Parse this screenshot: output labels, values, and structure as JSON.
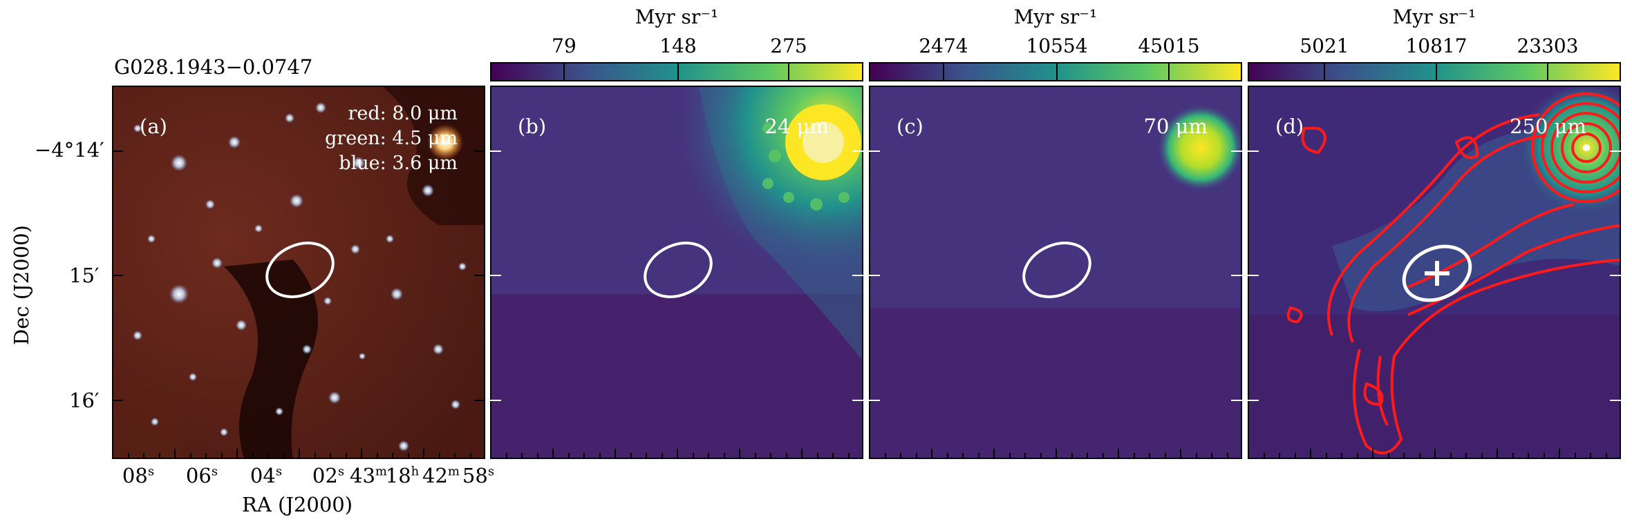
{
  "source_name": "G028.1943−0.0747",
  "axes": {
    "xlabel": "RA (J2000)",
    "ylabel": "Dec (J2000)",
    "yticks": [
      "−4°14′",
      "15′",
      "16′"
    ],
    "xticks": [
      "08",
      "06",
      "04",
      "02",
      "43",
      "18",
      "42",
      "58"
    ]
  },
  "panels": [
    {
      "id": "a",
      "label": "(a)",
      "legend": [
        "red: 8.0 μm",
        "green: 4.5 μm",
        "blue: 3.6 μm"
      ]
    },
    {
      "id": "b",
      "label": "(b)",
      "wavelength": "24 μm",
      "colorbar": {
        "unit": "Myr sr⁻¹",
        "ticks": [
          "79",
          "148",
          "275"
        ]
      }
    },
    {
      "id": "c",
      "label": "(c)",
      "wavelength": "70 μm",
      "colorbar": {
        "unit": "Myr sr⁻¹",
        "ticks": [
          "2474",
          "10554",
          "45015"
        ]
      }
    },
    {
      "id": "d",
      "label": "(d)",
      "wavelength": "250 μm",
      "colorbar": {
        "unit": "Myr sr⁻¹",
        "ticks": [
          "5021",
          "10817",
          "23303"
        ]
      }
    }
  ],
  "colors": {
    "viridis_low": "#440154",
    "viridis_mid": "#21918c",
    "viridis_high": "#fde725",
    "contour": "#ff1a1a",
    "ellipse": "#ffffff"
  }
}
